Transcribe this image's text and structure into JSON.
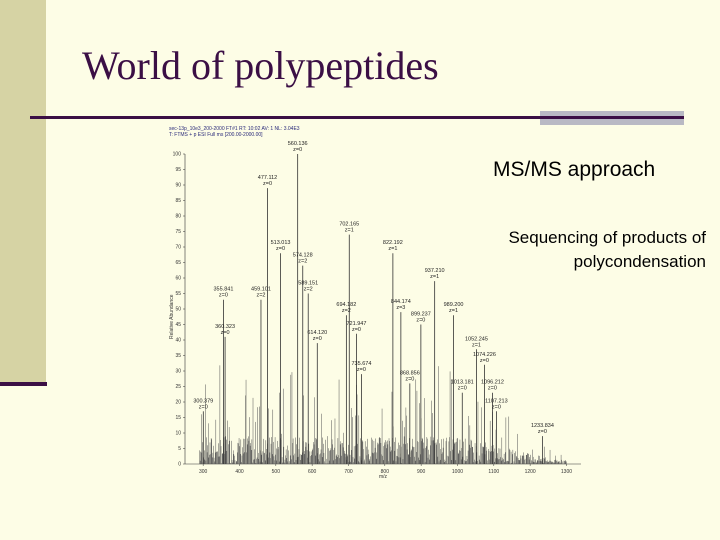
{
  "slide": {
    "title": "World of polypeptides",
    "ms_heading": "MS/MS approach",
    "sequencing_text": "Sequencing of products of polycondensation"
  },
  "spectrum": {
    "header_line1": "sec-13p_10e3_200-2000 FT#1 RT: 10:02 AV: 1 NL: 3.04E3",
    "header_line2": "T: FTMS + p ESI Full ms [200.00-2000.00]",
    "y_axis_label": "Relative Abundance",
    "x_axis_label": "m/z",
    "y_ticks": [
      "0",
      "5",
      "10",
      "15",
      "20",
      "25",
      "30",
      "35",
      "40",
      "45",
      "50",
      "55",
      "60",
      "65",
      "70",
      "75",
      "80",
      "85",
      "90",
      "95",
      "100"
    ],
    "x_ticks": [
      "300",
      "400",
      "500",
      "600",
      "700",
      "800",
      "900",
      "1000",
      "1100",
      "1200",
      "1300"
    ],
    "peaks": [
      {
        "mz": 300.379,
        "label": "300.379",
        "charge": "z=0",
        "rel": 17
      },
      {
        "mz": 355.841,
        "label": "355.841",
        "charge": "z=0",
        "rel": 53
      },
      {
        "mz": 360.323,
        "label": "360.323",
        "charge": "z=0",
        "rel": 41
      },
      {
        "mz": 459.101,
        "label": "459.101",
        "charge": "z=2",
        "rel": 53
      },
      {
        "mz": 477.112,
        "label": "477.112",
        "charge": "z=0",
        "rel": 89
      },
      {
        "mz": 560.136,
        "label": "560.136",
        "charge": "z=0",
        "rel": 100
      },
      {
        "mz": 513.013,
        "label": "513.013",
        "charge": "z=0",
        "rel": 68
      },
      {
        "mz": 574.128,
        "label": "574.128",
        "charge": "z=2",
        "rel": 64
      },
      {
        "mz": 614.12,
        "label": "614.120",
        "charge": "z=0",
        "rel": 39
      },
      {
        "mz": 589.151,
        "label": "589.151",
        "charge": "z=2",
        "rel": 55
      },
      {
        "mz": 702.165,
        "label": "702.165",
        "charge": "z=1",
        "rel": 74
      },
      {
        "mz": 694.182,
        "label": "694.182",
        "charge": "z=2",
        "rel": 48
      },
      {
        "mz": 721.947,
        "label": "721.947",
        "charge": "z=0",
        "rel": 42
      },
      {
        "mz": 735.674,
        "label": "735.674",
        "charge": "z=0",
        "rel": 29
      },
      {
        "mz": 822.192,
        "label": "822.192",
        "charge": "z=1",
        "rel": 68
      },
      {
        "mz": 844.174,
        "label": "844.174",
        "charge": "z=3",
        "rel": 49
      },
      {
        "mz": 868.856,
        "label": "868.856",
        "charge": "z=0",
        "rel": 26
      },
      {
        "mz": 899.237,
        "label": "899.237",
        "charge": "z=0",
        "rel": 45
      },
      {
        "mz": 937.21,
        "label": "937.210",
        "charge": "z=1",
        "rel": 59
      },
      {
        "mz": 989.2,
        "label": "989.200",
        "charge": "z=1",
        "rel": 48
      },
      {
        "mz": 1013.181,
        "label": "1013.181",
        "charge": "z=0",
        "rel": 23
      },
      {
        "mz": 1052.245,
        "label": "1052.245",
        "charge": "z=1",
        "rel": 37
      },
      {
        "mz": 1074.226,
        "label": "1074.226",
        "charge": "z=0",
        "rel": 32
      },
      {
        "mz": 1096.212,
        "label": "1096.212",
        "charge": "z=0",
        "rel": 23
      },
      {
        "mz": 1107.213,
        "label": "1107.213",
        "charge": "z=0",
        "rel": 17
      },
      {
        "mz": 1233.834,
        "label": "1233.834",
        "charge": "z=0",
        "rel": 9
      }
    ],
    "colors": {
      "trace": "#555555",
      "axis": "#333333",
      "header": "#2a2a7a"
    }
  }
}
